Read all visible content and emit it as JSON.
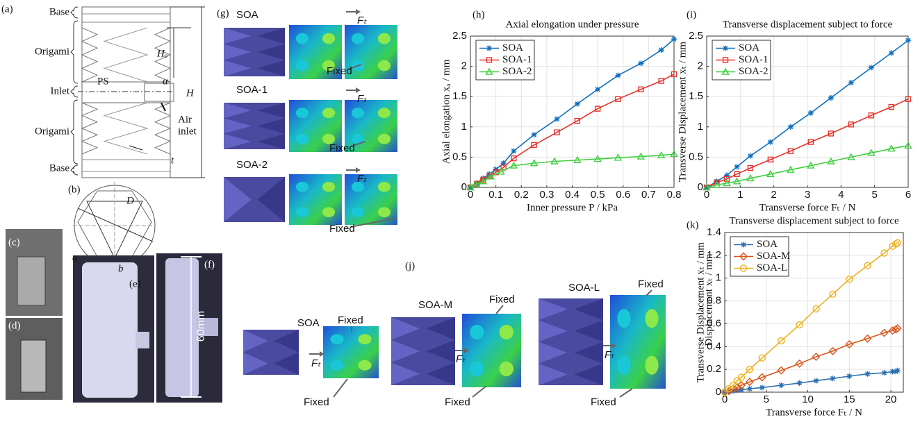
{
  "figure": {
    "panel_labels": [
      "(a)",
      "(b)",
      "(c)",
      "(d)",
      "(e)",
      "(f)",
      "(g)",
      "(h)",
      "(i)",
      "(j)",
      "(k)"
    ],
    "a": [
      "Base",
      "Origami",
      "Inlet",
      "Origami",
      "Base",
      "Hₒ",
      "α",
      "PS",
      "H",
      "Air",
      "inlet",
      "t"
    ],
    "b": [
      "D",
      "a",
      "b"
    ],
    "f": [
      "60mm"
    ],
    "g": [
      "SOA",
      "SOA-1",
      "SOA-2",
      "Fₜ",
      "Fₜ",
      "Fₜ",
      "Fixed",
      "Fixed",
      "Fixed"
    ],
    "j": [
      "SOA",
      "SOA-M",
      "SOA-L",
      "Fixed",
      "Fixed",
      "Fixed",
      "Fixed",
      "Fixed",
      "Fixed",
      "Fₜ",
      "Fₜ",
      "Fₜ"
    ]
  },
  "chart_data": [
    {
      "type": "line",
      "title": "Axial elongation under pressure",
      "xlabel": "Inner pressure P / kPa",
      "ylabel": "Axial elongation xₐ / mm",
      "xlim": [
        0,
        0.8
      ],
      "xticks": [
        0,
        0.1,
        0.2,
        0.3,
        0.4,
        0.5,
        0.6,
        0.7,
        0.8
      ],
      "ylim": [
        0,
        2.5
      ],
      "yticks": [
        0,
        0.5,
        1,
        1.5,
        2,
        2.5
      ],
      "grid": true,
      "legend": "upper left",
      "series": [
        {
          "name": "SOA",
          "color": "#0f6fbd",
          "marker": "asterisk",
          "x": [
            0,
            0.025,
            0.05,
            0.075,
            0.1,
            0.13,
            0.17,
            0.25,
            0.34,
            0.42,
            0.5,
            0.58,
            0.67,
            0.75,
            0.8
          ],
          "values": [
            0,
            0.07,
            0.15,
            0.22,
            0.3,
            0.4,
            0.6,
            0.87,
            1.13,
            1.38,
            1.62,
            1.85,
            2.05,
            2.27,
            2.45
          ]
        },
        {
          "name": "SOA-1",
          "color": "#e8312a",
          "marker": "square",
          "x": [
            0,
            0.025,
            0.05,
            0.075,
            0.1,
            0.13,
            0.17,
            0.25,
            0.34,
            0.42,
            0.5,
            0.58,
            0.67,
            0.75,
            0.8
          ],
          "values": [
            0,
            0.06,
            0.12,
            0.19,
            0.25,
            0.33,
            0.48,
            0.7,
            0.91,
            1.1,
            1.3,
            1.46,
            1.62,
            1.76,
            1.87
          ]
        },
        {
          "name": "SOA-2",
          "color": "#3ccf3c",
          "marker": "triangle",
          "x": [
            0,
            0.02,
            0.05,
            0.08,
            0.12,
            0.17,
            0.25,
            0.33,
            0.42,
            0.5,
            0.58,
            0.67,
            0.75,
            0.8
          ],
          "values": [
            0,
            0.05,
            0.1,
            0.18,
            0.26,
            0.36,
            0.4,
            0.43,
            0.45,
            0.47,
            0.49,
            0.51,
            0.53,
            0.55
          ]
        }
      ]
    },
    {
      "type": "line",
      "title": "Transverse displacement subject to force",
      "xlabel": "Transverse force Fₜ / N",
      "ylabel": "Transverse Displacement xₜ / mm",
      "xlim": [
        0,
        6
      ],
      "xticks": [
        0,
        1,
        2,
        3,
        4,
        5,
        6
      ],
      "ylim": [
        0,
        2.5
      ],
      "yticks": [
        0,
        0.5,
        1,
        1.5,
        2,
        2.5
      ],
      "grid": true,
      "legend": "upper left",
      "series": [
        {
          "name": "SOA",
          "color": "#0f6fbd",
          "marker": "asterisk",
          "x": [
            0,
            0.3,
            0.6,
            0.9,
            1.3,
            1.9,
            2.5,
            3.1,
            3.7,
            4.3,
            4.9,
            5.5,
            6
          ],
          "values": [
            0,
            0.1,
            0.2,
            0.34,
            0.52,
            0.75,
            1.0,
            1.23,
            1.48,
            1.73,
            1.98,
            2.22,
            2.43
          ]
        },
        {
          "name": "SOA-1",
          "color": "#e8312a",
          "marker": "square",
          "x": [
            0,
            0.3,
            0.6,
            0.9,
            1.3,
            1.9,
            2.5,
            3.1,
            3.7,
            4.3,
            4.9,
            5.5,
            6
          ],
          "values": [
            0,
            0.08,
            0.14,
            0.22,
            0.32,
            0.46,
            0.6,
            0.75,
            0.89,
            1.04,
            1.19,
            1.33,
            1.46
          ]
        },
        {
          "name": "SOA-2",
          "color": "#3ccf3c",
          "marker": "triangle",
          "x": [
            0,
            0.3,
            0.6,
            0.9,
            1.3,
            1.9,
            2.5,
            3.1,
            3.7,
            4.3,
            4.9,
            5.5,
            6
          ],
          "values": [
            0,
            0.04,
            0.07,
            0.1,
            0.15,
            0.22,
            0.29,
            0.36,
            0.43,
            0.5,
            0.57,
            0.64,
            0.69
          ]
        }
      ]
    },
    {
      "type": "line",
      "title": "Transverse displacement subject to force",
      "xlabel": "Transverse force Fₜ / N",
      "ylabel": "Transverse Displacement xₜ / mm",
      "ylabel_note": "Displacement xₜ / mm",
      "xlim": [
        0,
        21.5
      ],
      "xticks": [
        0,
        5,
        10,
        15,
        20
      ],
      "ylim": [
        0,
        1.4
      ],
      "yticks": [
        0,
        0.2,
        0.4,
        0.6,
        0.8,
        1,
        1.2,
        1.4
      ],
      "grid": true,
      "legend": "upper left",
      "series": [
        {
          "name": "SOA",
          "color": "#2a6fb0",
          "marker": "asterisk",
          "x": [
            0,
            0.5,
            1,
            1.5,
            2,
            3,
            4.5,
            6.8,
            9,
            11,
            13,
            15,
            17.2,
            19.2,
            20.2,
            20.6,
            20.8
          ],
          "values": [
            0,
            0.005,
            0.01,
            0.015,
            0.02,
            0.03,
            0.04,
            0.06,
            0.08,
            0.1,
            0.12,
            0.14,
            0.16,
            0.17,
            0.18,
            0.18,
            0.19
          ]
        },
        {
          "name": "SOA-M",
          "color": "#d95319",
          "marker": "diamond",
          "x": [
            0,
            0.5,
            1,
            1.5,
            2,
            3,
            4.5,
            6.8,
            9,
            11,
            13,
            15,
            17.2,
            19.2,
            20.2,
            20.6,
            20.8
          ],
          "values": [
            0,
            0.01,
            0.03,
            0.04,
            0.06,
            0.09,
            0.13,
            0.19,
            0.25,
            0.31,
            0.36,
            0.42,
            0.47,
            0.52,
            0.54,
            0.55,
            0.56
          ]
        },
        {
          "name": "SOA-L",
          "color": "#edb120",
          "marker": "circle",
          "x": [
            0,
            0.5,
            1,
            1.5,
            2,
            3,
            4.5,
            6.8,
            9,
            11,
            13,
            15,
            17.2,
            19.2,
            20.2,
            20.6,
            20.8
          ],
          "values": [
            0,
            0.03,
            0.06,
            0.1,
            0.13,
            0.2,
            0.3,
            0.45,
            0.59,
            0.73,
            0.86,
            0.99,
            1.11,
            1.22,
            1.28,
            1.3,
            1.31
          ]
        }
      ]
    }
  ]
}
